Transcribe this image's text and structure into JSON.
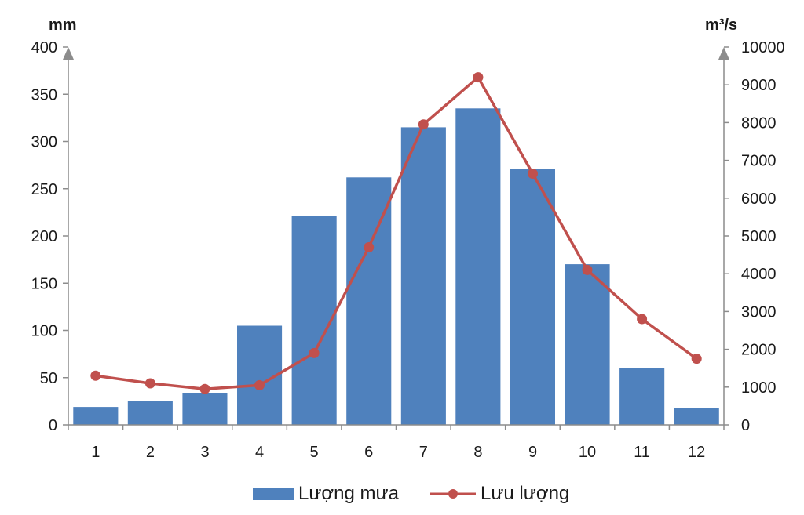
{
  "chart_data": {
    "type": "bar",
    "categories": [
      "1",
      "2",
      "3",
      "4",
      "5",
      "6",
      "7",
      "8",
      "9",
      "10",
      "11",
      "12"
    ],
    "left_axis": {
      "unit": "mm",
      "ticks": [
        0,
        50,
        100,
        150,
        200,
        250,
        300,
        350,
        400
      ],
      "ylim": [
        0,
        400
      ]
    },
    "right_axis": {
      "unit": "m³/s",
      "ticks": [
        0,
        1000,
        2000,
        3000,
        4000,
        5000,
        6000,
        7000,
        8000,
        9000,
        10000
      ],
      "ylim": [
        0,
        10000
      ]
    },
    "series": [
      {
        "name": "Lượng mưa",
        "type": "bar",
        "axis": "left",
        "color": "#4f81bd",
        "values": [
          19,
          25,
          34,
          105,
          221,
          262,
          315,
          335,
          271,
          170,
          60,
          18
        ]
      },
      {
        "name": "Lưu lượng",
        "type": "line",
        "axis": "right",
        "color": "#c0504d",
        "values": [
          1300,
          1100,
          950,
          1050,
          1900,
          4700,
          7950,
          9200,
          6650,
          4100,
          2800,
          1750
        ]
      }
    ],
    "grid": false,
    "legend": "bottom-center"
  }
}
